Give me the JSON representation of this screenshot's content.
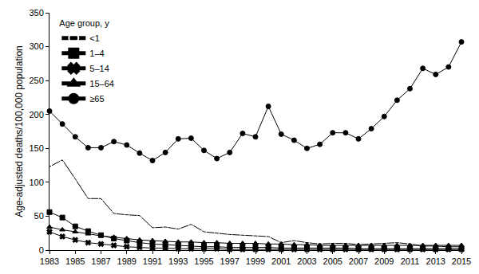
{
  "chart_data": {
    "type": "line",
    "y_label": "Age-adjusted deaths/100,000 population",
    "legend_title": "Age group, y",
    "legend": "top-left",
    "grid": false,
    "x": [
      1983,
      1984,
      1985,
      1986,
      1987,
      1988,
      1989,
      1990,
      1991,
      1992,
      1993,
      1994,
      1995,
      1996,
      1997,
      1998,
      1999,
      2000,
      2001,
      2002,
      2003,
      2004,
      2005,
      2006,
      2007,
      2008,
      2009,
      2010,
      2011,
      2012,
      2013,
      2014,
      2015
    ],
    "xlim": [
      1983,
      2015
    ],
    "xticks": [
      1983,
      1985,
      1987,
      1989,
      1991,
      1993,
      1995,
      1997,
      1999,
      2001,
      2003,
      2005,
      2007,
      2009,
      2011,
      2013,
      2015
    ],
    "ylim": [
      0,
      350
    ],
    "yticks": [
      0,
      50,
      100,
      150,
      200,
      250,
      300,
      350
    ],
    "series": [
      {
        "name": "<1",
        "color": "#000000",
        "marker": "circle-open",
        "line_style": "solid",
        "values": [
          123,
          133,
          105,
          76,
          76,
          54,
          52,
          51,
          33,
          34,
          31,
          38,
          27,
          25,
          23,
          22,
          21,
          20,
          11,
          14,
          11,
          9,
          10,
          10,
          8,
          9,
          10,
          11,
          9,
          6,
          6,
          5,
          5
        ]
      },
      {
        "name": "1–4",
        "color": "#000000",
        "marker": "square",
        "line_style": "solid",
        "values": [
          56,
          48,
          35,
          28,
          22,
          17,
          14,
          11,
          9,
          8,
          7,
          6,
          5,
          5,
          4,
          4,
          4,
          4,
          3,
          3,
          3,
          3,
          3,
          3,
          2,
          2,
          2,
          2,
          2,
          2,
          2,
          2,
          2
        ]
      },
      {
        "name": "5–14",
        "color": "#000000",
        "marker": "x",
        "line_style": "solid",
        "values": [
          27,
          20,
          15,
          11,
          9,
          7,
          5,
          4,
          3,
          3,
          2,
          2,
          2,
          2,
          1,
          1,
          1,
          1,
          1,
          1,
          1,
          1,
          1,
          1,
          1,
          1,
          1,
          1,
          1,
          1,
          1,
          1,
          1
        ]
      },
      {
        "name": "15–64",
        "color": "#000000",
        "marker": "triangle-up",
        "line_style": "solid",
        "values": [
          34,
          30,
          27,
          24,
          21,
          19,
          17,
          15,
          14,
          13,
          12,
          12,
          11,
          11,
          10,
          10,
          10,
          9,
          9,
          8,
          8,
          7,
          7,
          7,
          7,
          7,
          7,
          7,
          7,
          7,
          7,
          7,
          7
        ]
      },
      {
        "name": "≥65",
        "color": "#000000",
        "marker": "circle",
        "line_style": "solid",
        "values": [
          205,
          186,
          167,
          151,
          151,
          160,
          155,
          143,
          132,
          144,
          164,
          165,
          147,
          135,
          144,
          172,
          167,
          212,
          171,
          162,
          150,
          156,
          173,
          173,
          164,
          179,
          197,
          221,
          238,
          268,
          259,
          270,
          307
        ]
      }
    ]
  }
}
